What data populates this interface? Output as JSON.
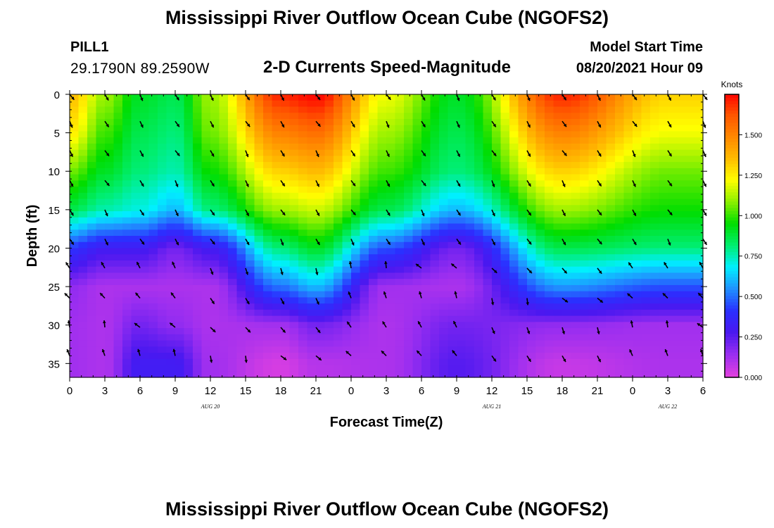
{
  "page": {
    "title_top": "Mississippi River Outflow Ocean Cube (NGOFS2)",
    "title_bottom": "Mississippi River Outflow Ocean Cube (NGOFS2)",
    "station_name": "PILL1",
    "station_coords": "29.1790N  89.2590W",
    "subtitle": "2-D Currents Speed-Magnitude",
    "model_start_label": "Model Start Time",
    "model_start_value": "08/20/2021 Hour 09"
  },
  "chart_data": {
    "type": "heatmap",
    "title": "2-D Currents Speed-Magnitude",
    "xlabel": "Forecast Time(Z)",
    "ylabel": "Depth (ft)",
    "x_tick_labels": [
      "0",
      "3",
      "6",
      "9",
      "12",
      "15",
      "18",
      "21",
      "0",
      "3",
      "6",
      "9",
      "12",
      "15",
      "18",
      "21",
      "0",
      "3",
      "6"
    ],
    "x_hours_from_start": [
      0,
      3,
      6,
      9,
      12,
      15,
      18,
      21,
      24,
      27,
      30,
      33,
      36,
      39,
      42,
      45,
      48,
      51,
      54
    ],
    "date_labels": [
      {
        "text": "AUG  20",
        "hour": 12
      },
      {
        "text": "AUG  21",
        "hour": 36
      },
      {
        "text": "AUG  22",
        "hour": 51
      }
    ],
    "y_ticks": [
      0,
      5,
      10,
      15,
      20,
      25,
      30,
      35
    ],
    "ylim": [
      0,
      36.8
    ],
    "xlim": [
      0,
      54
    ],
    "colorbar": {
      "label": "Knots",
      "ticks": [
        "0.000",
        "0.250",
        "0.500",
        "0.750",
        "1.000",
        "1.250",
        "1.500"
      ],
      "range": [
        0,
        1.75
      ],
      "colors": [
        "#e040e0",
        "#9a2ef0",
        "#4a18f0",
        "#2a30ff",
        "#2090ff",
        "#00f0ff",
        "#00ee70",
        "#00dd00",
        "#8cf000",
        "#ffff00",
        "#ffbb00",
        "#ff8800",
        "#ff5500",
        "#ff0000"
      ]
    },
    "speed_profiles": [
      {
        "hour": 0,
        "depth": [
          0,
          5,
          10,
          15,
          20,
          25,
          30,
          35
        ],
        "speed": [
          1.35,
          1.25,
          1.05,
          0.85,
          0.4,
          0.15,
          0.12,
          0.12
        ]
      },
      {
        "hour": 3,
        "depth": [
          0,
          5,
          10,
          15,
          20,
          25,
          30,
          35
        ],
        "speed": [
          1.1,
          1.0,
          0.9,
          0.75,
          0.3,
          0.1,
          0.1,
          0.1
        ]
      },
      {
        "hour": 6,
        "depth": [
          0,
          5,
          10,
          15,
          20,
          25,
          30,
          35
        ],
        "speed": [
          0.9,
          0.85,
          0.8,
          0.7,
          0.3,
          0.1,
          0.2,
          0.3
        ]
      },
      {
        "hour": 9,
        "depth": [
          0,
          5,
          10,
          15,
          20,
          25,
          30,
          35
        ],
        "speed": [
          0.85,
          0.8,
          0.75,
          0.6,
          0.2,
          0.1,
          0.15,
          0.3
        ]
      },
      {
        "hour": 12,
        "depth": [
          0,
          5,
          10,
          15,
          20,
          25,
          30,
          35
        ],
        "speed": [
          1.1,
          1.05,
          0.95,
          0.8,
          0.3,
          0.1,
          0.1,
          0.12
        ]
      },
      {
        "hour": 18,
        "depth": [
          0,
          5,
          10,
          15,
          20,
          25,
          30,
          35
        ],
        "speed": [
          1.7,
          1.5,
          1.3,
          1.1,
          0.8,
          0.5,
          0.12,
          0.02
        ]
      },
      {
        "hour": 21,
        "depth": [
          0,
          5,
          10,
          15,
          20,
          25,
          30,
          35
        ],
        "speed": [
          1.75,
          1.55,
          1.35,
          1.15,
          0.9,
          0.6,
          0.2,
          0.08
        ]
      },
      {
        "hour": 27,
        "depth": [
          0,
          5,
          10,
          15,
          20,
          25,
          30,
          35
        ],
        "speed": [
          1.2,
          1.1,
          1.0,
          0.85,
          0.45,
          0.12,
          0.1,
          0.1
        ]
      },
      {
        "hour": 33,
        "depth": [
          0,
          5,
          10,
          15,
          20,
          25,
          30,
          35
        ],
        "speed": [
          0.9,
          0.85,
          0.8,
          0.6,
          0.2,
          0.1,
          0.2,
          0.25
        ]
      },
      {
        "hour": 42,
        "depth": [
          0,
          5,
          10,
          15,
          20,
          25,
          30,
          35
        ],
        "speed": [
          1.7,
          1.5,
          1.3,
          1.1,
          0.85,
          0.55,
          0.15,
          0.05
        ]
      },
      {
        "hour": 51,
        "depth": [
          0,
          5,
          10,
          15,
          20,
          25,
          30,
          35
        ],
        "speed": [
          1.3,
          1.2,
          1.05,
          0.95,
          0.8,
          0.45,
          0.12,
          0.1
        ]
      }
    ],
    "vector_rows_depth": [
      0,
      3.5,
      7.3,
      11.2,
      15,
      18.8,
      22.6,
      26.5,
      30.3,
      34
    ],
    "vector_cols_hours": [
      0,
      3,
      6,
      9,
      12,
      15,
      18,
      21,
      24,
      27,
      30,
      33,
      36,
      39,
      42,
      45,
      48,
      51,
      54
    ]
  }
}
